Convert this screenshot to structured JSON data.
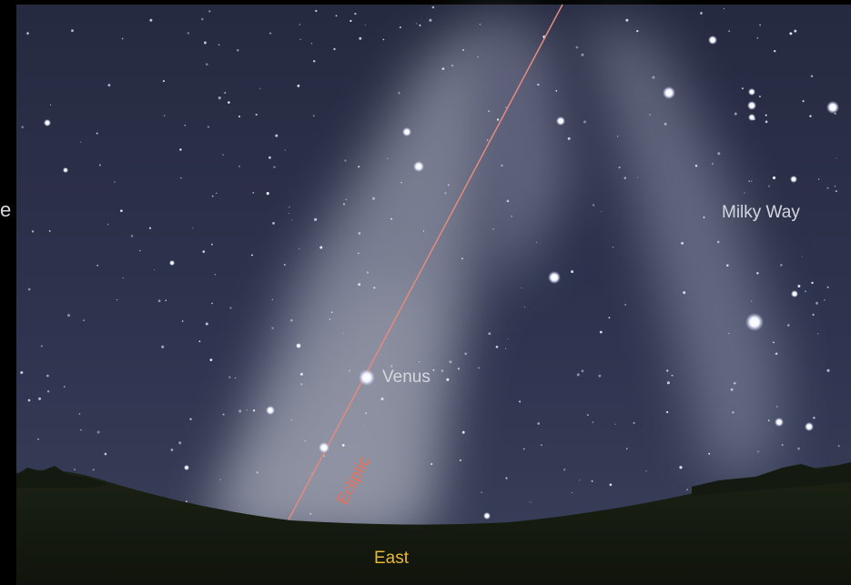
{
  "labels": {
    "edge_text": "e",
    "milky_way": "Milky Way",
    "venus": "Venus",
    "ecliptic": "Ecliptic",
    "direction": "East"
  }
}
